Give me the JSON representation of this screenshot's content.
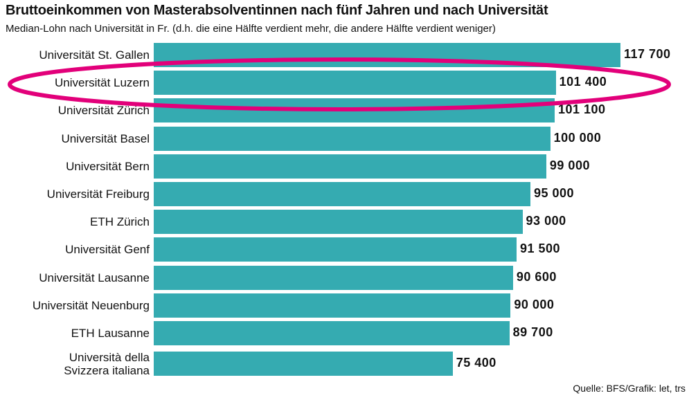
{
  "chart_data": {
    "type": "bar",
    "orientation": "horizontal",
    "title": "Bruttoeinkommen von Masterabsolventinnen nach fünf Jahren und nach Universität",
    "subtitle": "Median-Lohn nach Universität in Fr. (d.h. die eine Hälfte verdient mehr, die andere Hälfte verdient weniger)",
    "categories": [
      "Universität St. Gallen",
      "Universität Luzern",
      "Universität Zürich",
      "Universität Basel",
      "Universität Bern",
      "Universität Freiburg",
      "ETH Zürich",
      "Universität Genf",
      "Universität Lausanne",
      "Universität Neuenburg",
      "ETH Lausanne",
      "Università della\nSvizzera italiana"
    ],
    "values": [
      117700,
      101400,
      101100,
      100000,
      99000,
      95000,
      93000,
      91500,
      90600,
      90000,
      89700,
      75400
    ],
    "value_labels": [
      "117 700",
      "101 400",
      "101 100",
      "100 000",
      "99 000",
      "95 000",
      "93 000",
      "91 500",
      "90 600",
      "90 000",
      "89 700",
      "75 400"
    ],
    "color": "#35abb1",
    "source": "Quelle: BFS/Grafik: let, trs"
  }
}
